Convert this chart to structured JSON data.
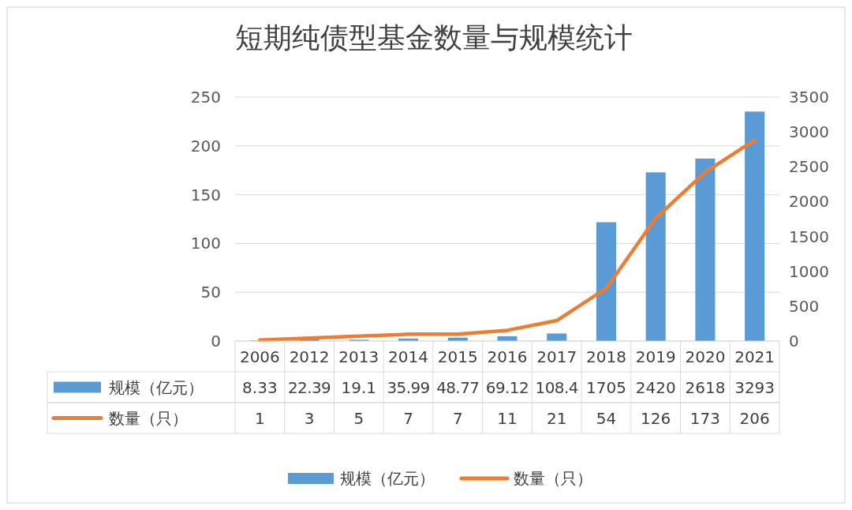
{
  "chart_data": {
    "type": "bar",
    "title": "短期纯债型基金数量与规模统计",
    "categories": [
      "2006",
      "2012",
      "2013",
      "2014",
      "2015",
      "2016",
      "2017",
      "2018",
      "2019",
      "2020",
      "2021"
    ],
    "series": [
      {
        "name": "规模（亿元）",
        "axis": "y2",
        "color": "#5b9bd5",
        "values": [
          8.33,
          22.39,
          19.1,
          35.99,
          48.77,
          69.12,
          108.4,
          1705,
          2420,
          2618,
          3293
        ]
      },
      {
        "name": "数量（只）",
        "type": "line",
        "color": "#ed7d31",
        "values": [
          1,
          3,
          5,
          7,
          7,
          11,
          21,
          54,
          126,
          173,
          206
        ]
      }
    ],
    "ylim": [
      0,
      250
    ],
    "yticks": [
      0,
      50,
      100,
      150,
      200,
      250
    ],
    "y2lim": [
      0,
      3500
    ],
    "y2ticks": [
      0,
      500,
      1000,
      1500,
      2000,
      2500,
      3000,
      3500
    ],
    "grid": "y",
    "legend": "bottom",
    "data_labels": true
  }
}
